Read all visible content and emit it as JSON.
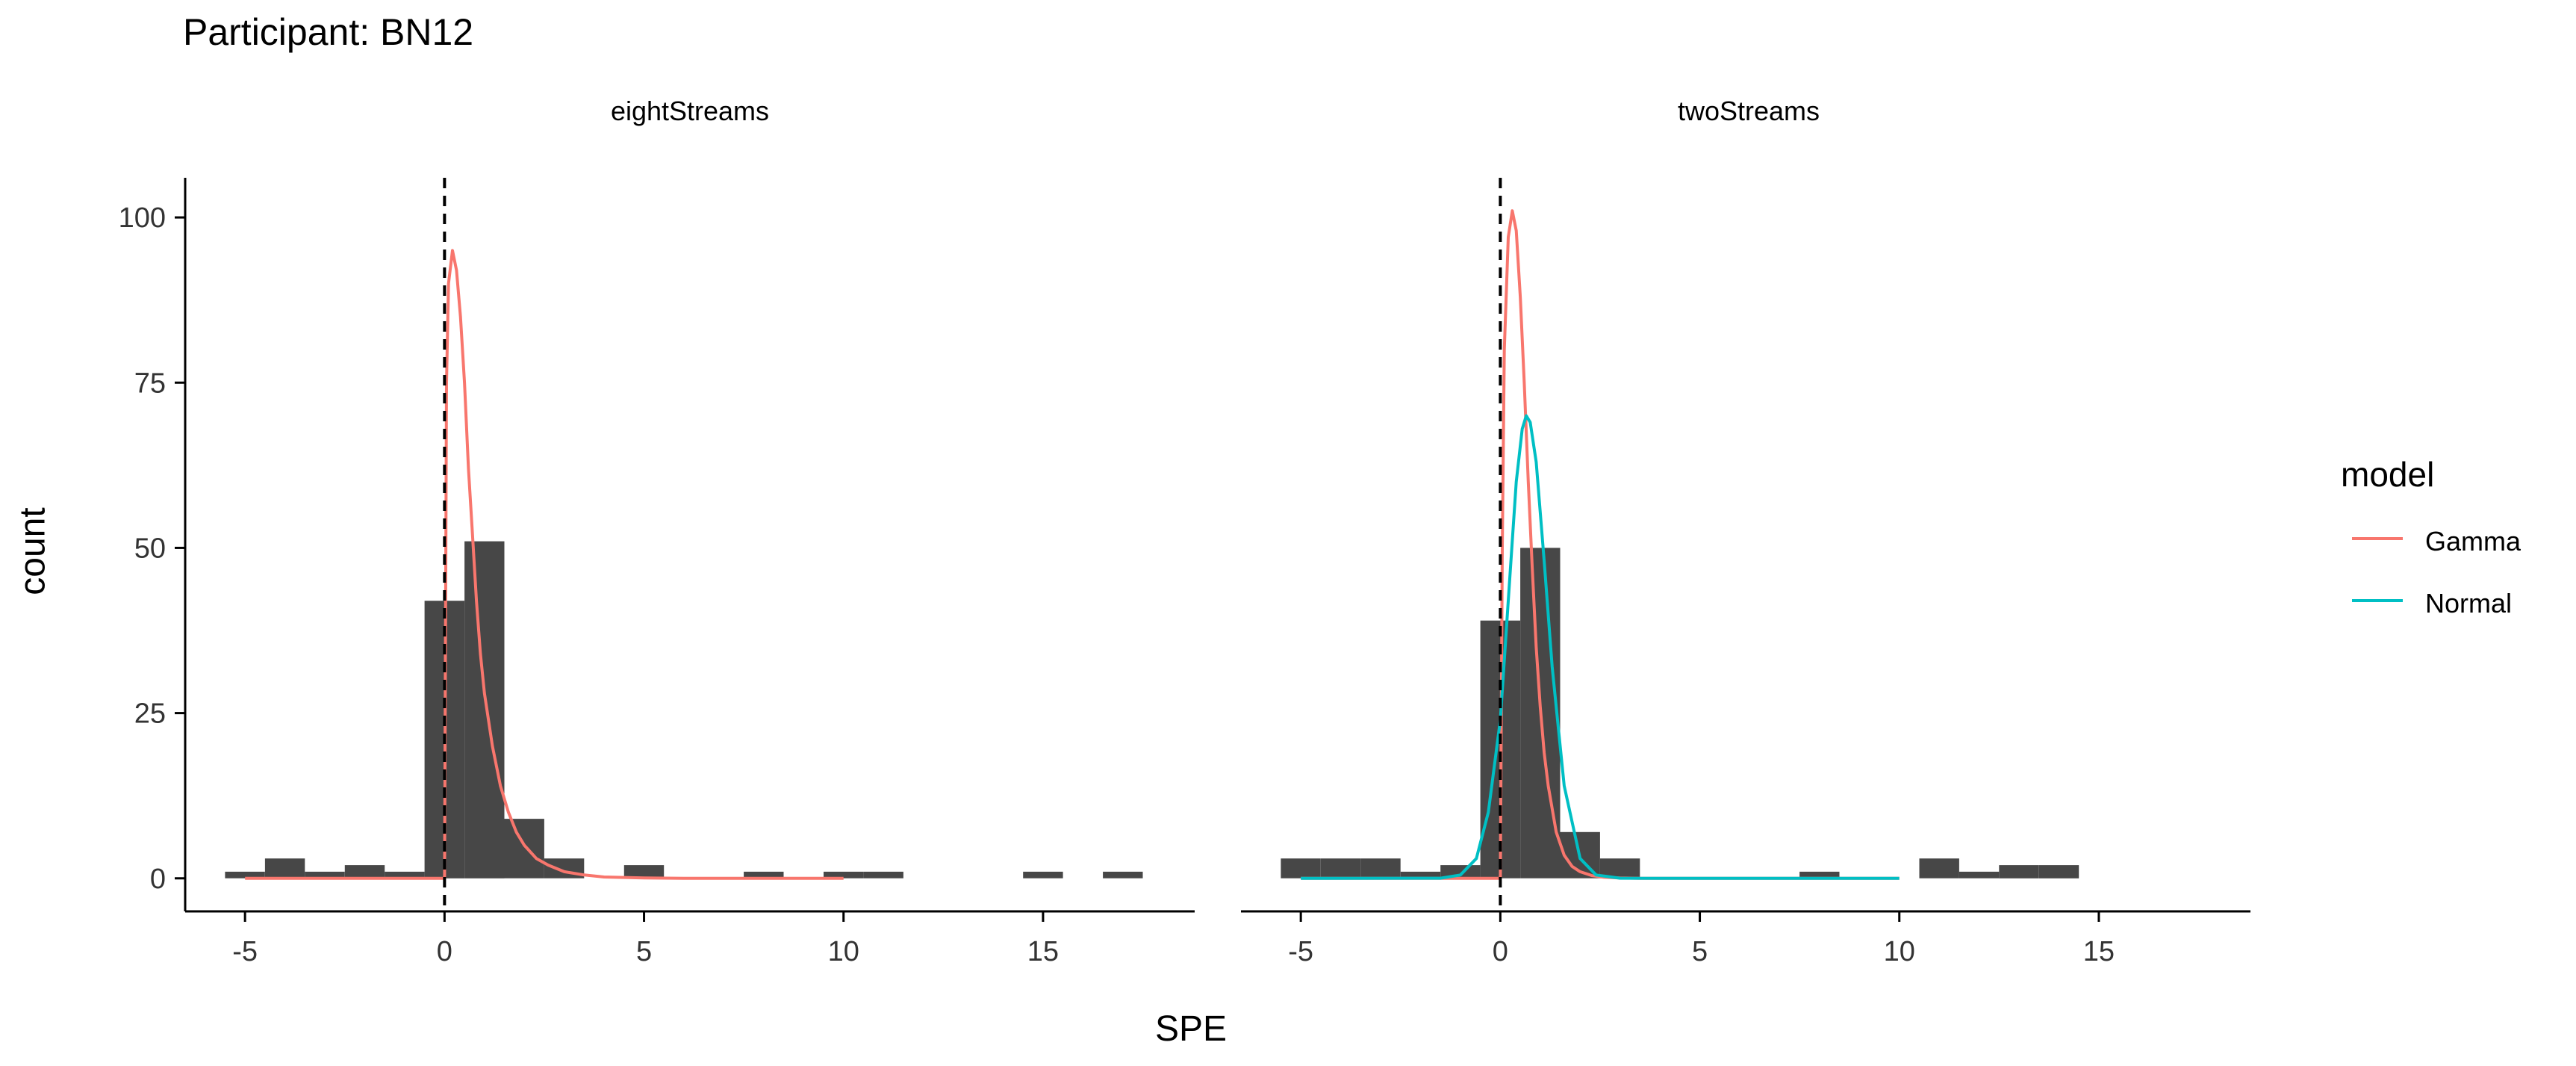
{
  "chart_data": {
    "type": "bar",
    "title": "Participant: BN12",
    "xlabel": "SPE",
    "ylabel": "count",
    "xlim": [
      -6.5,
      18.8
    ],
    "ylim": [
      -5,
      106
    ],
    "xticks": [
      -5,
      0,
      5,
      10,
      15
    ],
    "yticks": [
      0,
      25,
      50,
      75,
      100
    ],
    "reference_line_x": 0,
    "grid": false,
    "legend": {
      "title": "model",
      "position": "right",
      "entries": [
        {
          "name": "Gamma",
          "color": "#F8766D"
        },
        {
          "name": "Normal",
          "color": "#00BFC4"
        }
      ]
    },
    "panels": [
      {
        "label": "eightStreams",
        "histogram": {
          "bin_width": 1,
          "bin_starts": [
            -5.5,
            -4.5,
            -3.5,
            -2.5,
            -1.5,
            -0.5,
            0.5,
            1.5,
            2.5,
            3.5,
            4.5,
            5.5,
            6.5,
            7.5,
            8.5,
            9.5,
            10.5,
            11.5,
            12.5,
            13.5,
            14.5,
            15.5,
            16.5
          ],
          "counts": [
            1,
            3,
            1,
            2,
            1,
            42,
            51,
            9,
            3,
            0,
            2,
            0,
            0,
            1,
            0,
            1,
            1,
            0,
            0,
            0,
            1,
            0,
            1
          ]
        },
        "fits": [
          {
            "name": "Gamma",
            "x": [
              -5,
              -0.05,
              0,
              0.05,
              0.1,
              0.2,
              0.3,
              0.4,
              0.5,
              0.6,
              0.7,
              0.8,
              0.9,
              1.0,
              1.2,
              1.4,
              1.6,
              1.8,
              2.0,
              2.3,
              2.6,
              3.0,
              3.5,
              4.0,
              5.0,
              6.0,
              8.0,
              10.0
            ],
            "y": [
              0,
              0,
              0,
              75,
              90,
              95,
              92,
              85,
              75,
              62,
              52,
              42,
              34,
              28,
              20,
              14,
              10,
              7,
              5,
              3,
              2,
              1,
              0.5,
              0.2,
              0.05,
              0,
              0,
              0
            ]
          }
        ]
      },
      {
        "label": "twoStreams",
        "histogram": {
          "bin_width": 1,
          "bin_starts": [
            -5.5,
            -4.5,
            -3.5,
            -2.5,
            -1.5,
            -0.5,
            0.5,
            1.5,
            2.5,
            3.5,
            4.5,
            5.5,
            6.5,
            7.5,
            8.5,
            9.5,
            10.5,
            11.5,
            12.5,
            13.5
          ],
          "counts": [
            3,
            3,
            3,
            1,
            2,
            39,
            50,
            7,
            3,
            0,
            0,
            0,
            0,
            1,
            0,
            0,
            3,
            1,
            2,
            2
          ]
        },
        "fits": [
          {
            "name": "Gamma",
            "x": [
              -5,
              -0.05,
              0,
              0.05,
              0.1,
              0.2,
              0.3,
              0.4,
              0.5,
              0.6,
              0.7,
              0.8,
              0.9,
              1.0,
              1.1,
              1.2,
              1.4,
              1.6,
              1.8,
              2.0,
              2.3,
              2.6,
              3.0,
              3.5,
              4.0,
              5.0,
              7.0,
              10.0
            ],
            "y": [
              0,
              0,
              0,
              50,
              80,
              97,
              101,
              98,
              88,
              75,
              60,
              47,
              35,
              26,
              19,
              14,
              7,
              3.5,
              1.8,
              1,
              0.4,
              0.15,
              0.05,
              0,
              0,
              0,
              0,
              0
            ]
          },
          {
            "name": "Normal",
            "x": [
              -5,
              -1.5,
              -1.0,
              -0.6,
              -0.3,
              0,
              0.2,
              0.4,
              0.55,
              0.65,
              0.75,
              0.9,
              1.1,
              1.3,
              1.6,
              2.0,
              2.4,
              3.0,
              4.0,
              6.0,
              10.0
            ],
            "y": [
              0,
              0.02,
              0.5,
              3,
              10,
              24,
              42,
              60,
              68,
              70,
              69,
              63,
              48,
              32,
              14,
              3,
              0.5,
              0.02,
              0,
              0,
              0
            ]
          }
        ]
      }
    ]
  }
}
